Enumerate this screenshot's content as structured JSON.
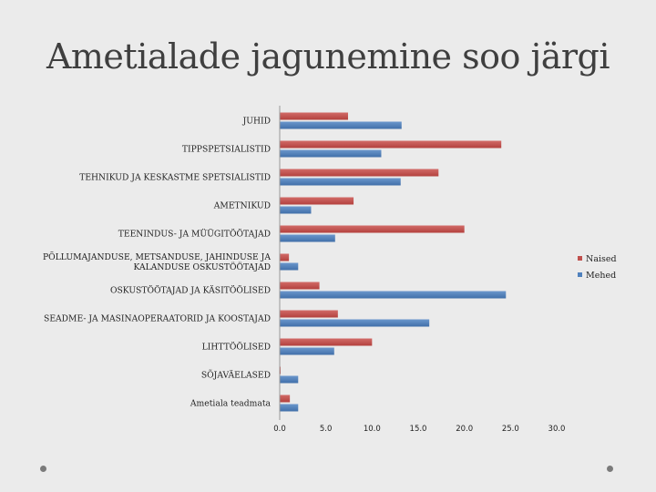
{
  "slide": {
    "title": "Ametialade jagunemine soo järgi"
  },
  "chart_data": {
    "type": "bar",
    "orientation": "horizontal",
    "title": "",
    "xlabel": "",
    "ylabel": "",
    "xlim": [
      0,
      30
    ],
    "x_ticks": [
      "0.0",
      "5.0",
      "10.0",
      "15.0",
      "20.0",
      "25.0",
      "30.0"
    ],
    "grid": false,
    "legend_position": "right",
    "categories": [
      [
        "JUHID"
      ],
      [
        "TIPPSPETSIALISTID"
      ],
      [
        "TEHNIKUD JA KESKASTME SPETSIALISTID"
      ],
      [
        "AMETNIKUD"
      ],
      [
        "TEENINDUS- JA MÜÜGITÖÖTAJAD"
      ],
      [
        "PÕLLUMAJANDUSE, METSANDUSE, JAHINDUSE JA",
        "KALANDUSE OSKUSTÖÖTAJAD"
      ],
      [
        "OSKUSTÖÖTAJAD JA KÄSITÖÖLISED"
      ],
      [
        "SEADME- JA MASINAOPERAATORID JA KOOSTAJAD"
      ],
      [
        "LIHTTÖÖLISED"
      ],
      [
        "SÕJAVÄELASED"
      ],
      [
        "Ametiala teadmata"
      ]
    ],
    "series": [
      {
        "name": "Naised",
        "color": "#c0504d",
        "values": [
          7.4,
          24.0,
          17.2,
          8.0,
          20.0,
          1.0,
          4.3,
          6.3,
          10.0,
          0.1,
          1.1
        ]
      },
      {
        "name": "Mehed",
        "color": "#4f81bd",
        "values": [
          13.2,
          11.0,
          13.1,
          3.4,
          6.0,
          2.0,
          24.5,
          16.2,
          5.9,
          2.0,
          2.0
        ]
      }
    ]
  }
}
